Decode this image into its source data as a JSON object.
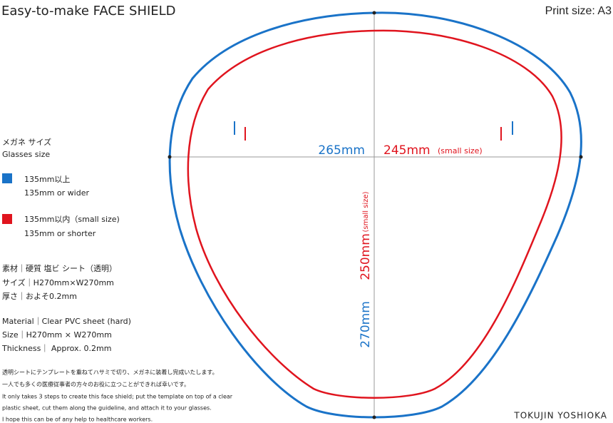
{
  "header": {
    "title": "Easy-to-make  FACE SHIELD",
    "print_size": "Print size: A3"
  },
  "glasses": {
    "heading_ja": "メガネ サイズ",
    "heading_en": "Glasses size",
    "items": [
      {
        "ja": "135mm以上",
        "en": "135mm or wider"
      },
      {
        "ja": "135mm以内（small size)",
        "en": "135mm or shorter"
      }
    ]
  },
  "spec_ja": [
    "素材｜硬質 塩ビ シート（透明）",
    "サイズ｜H270mm×W270mm",
    "厚さ｜およそ0.2mm"
  ],
  "spec_en": [
    "Material｜Clear PVC sheet (hard)",
    "Size｜H270mm × W270mm",
    "Thickness｜ Approx. 0.2mm"
  ],
  "note_ja": [
    "透明シートにテンプレートを重ねてハサミで切り、メガネに装着し完成いたします。",
    "一人でも多くの医療従事者の方々のお役に立つことができれば幸いです。"
  ],
  "note_en": [
    "It only takes 3 steps to create this face shield; put the template on top of a clear",
    "plastic sheet, cut them along the guideline, and attach it to your glasses.",
    "I hope this can be of any help to healthcare workers."
  ],
  "credit": "TOKUJIN YOSHIOKA",
  "diagram": {
    "width_large": "265mm",
    "width_small": "245mm",
    "width_small_note": "(small size)",
    "height_small": "250mm",
    "height_small_note": "(small size)",
    "height_large": "270mm"
  }
}
